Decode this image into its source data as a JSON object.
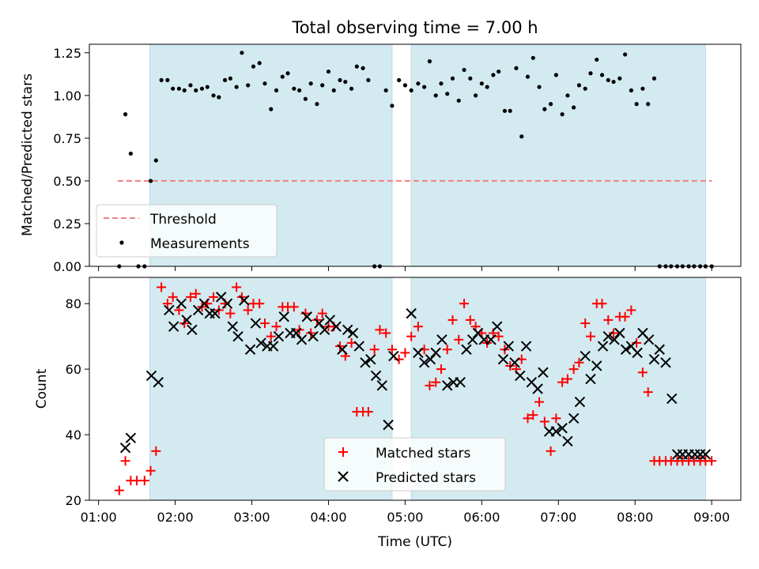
{
  "figure": {
    "title": "Total observing time = 7.00 h",
    "xlabel": "Time (UTC)",
    "x_ticks": [
      "01:00",
      "02:00",
      "03:00",
      "04:00",
      "05:00",
      "06:00",
      "07:00",
      "08:00",
      "09:00"
    ]
  },
  "colors": {
    "shade": "#d3eaf0",
    "measurement": "#000000",
    "threshold": "#f08080",
    "matched": "#ff0000",
    "predicted": "#000000"
  },
  "chart_data": [
    {
      "type": "scatter",
      "panel": "top",
      "ylabel": "Matched/Predicted stars",
      "ylim": [
        0,
        1.3
      ],
      "y_ticks": [
        "0.00",
        "0.25",
        "0.50",
        "0.75",
        "1.00",
        "1.25"
      ],
      "x_unit": "hours UTC",
      "shaded_intervals": [
        [
          1.67,
          4.83
        ],
        [
          5.08,
          8.92
        ]
      ],
      "threshold": {
        "value": 0.5,
        "x_range": [
          1.25,
          9.0
        ]
      },
      "legend": {
        "placement": "lower-left",
        "entries": [
          "Threshold",
          "Measurements"
        ]
      },
      "series": [
        {
          "name": "Measurements",
          "x": [
            1.27,
            1.35,
            1.42,
            1.52,
            1.6,
            1.68,
            1.75,
            1.82,
            1.9,
            1.97,
            2.05,
            2.12,
            2.2,
            2.27,
            2.35,
            2.42,
            2.5,
            2.57,
            2.65,
            2.72,
            2.8,
            2.87,
            2.95,
            3.02,
            3.1,
            3.17,
            3.25,
            3.32,
            3.4,
            3.47,
            3.55,
            3.62,
            3.7,
            3.77,
            3.85,
            3.92,
            4.0,
            4.07,
            4.15,
            4.22,
            4.3,
            4.37,
            4.45,
            4.52,
            4.6,
            4.67,
            4.75,
            4.83,
            4.92,
            5.0,
            5.08,
            5.17,
            5.25,
            5.32,
            5.4,
            5.47,
            5.55,
            5.62,
            5.7,
            5.77,
            5.85,
            5.92,
            6.0,
            6.07,
            6.15,
            6.22,
            6.3,
            6.37,
            6.45,
            6.52,
            6.6,
            6.67,
            6.75,
            6.82,
            6.9,
            6.97,
            7.05,
            7.12,
            7.2,
            7.27,
            7.35,
            7.42,
            7.5,
            7.57,
            7.65,
            7.72,
            7.8,
            7.87,
            7.95,
            8.02,
            8.1,
            8.17,
            8.25,
            8.32,
            8.4,
            8.47,
            8.55,
            8.62,
            8.7,
            8.77,
            8.85,
            8.92,
            9.0
          ],
          "y": [
            0.0,
            0.89,
            0.66,
            0.0,
            0.0,
            0.5,
            0.62,
            1.09,
            1.09,
            1.04,
            1.04,
            1.03,
            1.06,
            1.03,
            1.04,
            1.05,
            1.0,
            0.99,
            1.09,
            1.1,
            1.05,
            1.25,
            1.06,
            1.17,
            1.19,
            1.07,
            0.92,
            1.03,
            1.11,
            1.13,
            1.04,
            1.03,
            0.98,
            1.07,
            0.95,
            1.06,
            1.14,
            1.03,
            1.09,
            1.08,
            1.04,
            1.17,
            1.16,
            1.09,
            0.0,
            0.0,
            1.03,
            0.94,
            1.09,
            1.06,
            1.03,
            1.07,
            1.05,
            1.2,
            1.0,
            1.07,
            1.01,
            1.1,
            0.97,
            1.15,
            1.1,
            1.0,
            1.07,
            1.05,
            1.12,
            1.14,
            0.91,
            0.91,
            1.16,
            0.76,
            1.11,
            1.22,
            1.05,
            0.92,
            0.95,
            1.12,
            0.89,
            1.0,
            0.93,
            1.06,
            1.04,
            1.13,
            1.21,
            1.12,
            1.09,
            1.08,
            1.1,
            1.24,
            1.03,
            0.95,
            1.04,
            0.95,
            1.1,
            0.0,
            0.0,
            0.0,
            0.0,
            0.0,
            0.0,
            0.0,
            0.0,
            0.0,
            0.0
          ]
        }
      ]
    },
    {
      "type": "scatter",
      "panel": "bottom",
      "ylabel": "Count",
      "ylim": [
        20,
        88
      ],
      "y_ticks": [
        "20",
        "40",
        "60",
        "80"
      ],
      "x_unit": "hours UTC",
      "shaded_intervals": [
        [
          1.67,
          4.83
        ],
        [
          5.08,
          8.92
        ]
      ],
      "legend": {
        "placement": "lower-center",
        "entries": [
          "Matched stars",
          "Predicted stars"
        ]
      },
      "series": [
        {
          "name": "Matched stars",
          "marker": "plus",
          "x": [
            1.27,
            1.35,
            1.42,
            1.5,
            1.6,
            1.68,
            1.75,
            1.82,
            1.9,
            1.97,
            2.05,
            2.12,
            2.2,
            2.27,
            2.35,
            2.42,
            2.5,
            2.57,
            2.65,
            2.72,
            2.8,
            2.87,
            2.95,
            3.02,
            3.1,
            3.17,
            3.25,
            3.32,
            3.4,
            3.47,
            3.55,
            3.62,
            3.7,
            3.77,
            3.85,
            3.92,
            4.0,
            4.07,
            4.15,
            4.22,
            4.3,
            4.37,
            4.45,
            4.52,
            4.6,
            4.67,
            4.75,
            4.83,
            4.92,
            5.0,
            5.08,
            5.17,
            5.25,
            5.32,
            5.4,
            5.47,
            5.55,
            5.62,
            5.7,
            5.77,
            5.85,
            5.92,
            6.0,
            6.07,
            6.15,
            6.22,
            6.3,
            6.37,
            6.45,
            6.52,
            6.6,
            6.67,
            6.75,
            6.82,
            6.9,
            6.97,
            7.05,
            7.12,
            7.2,
            7.27,
            7.35,
            7.42,
            7.5,
            7.57,
            7.65,
            7.72,
            7.8,
            7.87,
            7.95,
            8.02,
            8.1,
            8.17,
            8.25,
            8.32,
            8.4,
            8.47,
            8.55,
            8.62,
            8.7,
            8.77,
            8.85,
            8.92,
            9.0
          ],
          "y": [
            23,
            32,
            26,
            26,
            26,
            29,
            35,
            85,
            80,
            82,
            78,
            74,
            82,
            83,
            79,
            80,
            82,
            78,
            80,
            77,
            85,
            82,
            78,
            80,
            80,
            74,
            70,
            73,
            79,
            79,
            79,
            72,
            77,
            71,
            75,
            77,
            73,
            73,
            67,
            64,
            68,
            47,
            47,
            47,
            66,
            72,
            71,
            66,
            63,
            65,
            70,
            73,
            66,
            55,
            56,
            60,
            66,
            75,
            69,
            80,
            75,
            73,
            71,
            68,
            71,
            70,
            66,
            61,
            60,
            63,
            45,
            46,
            50,
            44,
            35,
            45,
            56,
            57,
            60,
            62,
            74,
            70,
            80,
            80,
            75,
            71,
            76,
            76,
            78,
            68,
            59,
            53,
            32,
            32,
            32,
            32,
            32,
            32,
            32,
            32,
            32,
            32,
            32
          ],
          "note_x_offset": 0
        },
        {
          "name": "Predicted stars",
          "marker": "x",
          "x": [
            1.35,
            1.42,
            1.69,
            1.78,
            1.92,
            1.98,
            2.08,
            2.15,
            2.22,
            2.3,
            2.38,
            2.45,
            2.52,
            2.6,
            2.68,
            2.75,
            2.82,
            2.9,
            2.98,
            3.05,
            3.12,
            3.2,
            3.28,
            3.35,
            3.42,
            3.5,
            3.58,
            3.65,
            3.72,
            3.8,
            3.88,
            3.95,
            4.02,
            4.1,
            4.18,
            4.25,
            4.32,
            4.4,
            4.48,
            4.55,
            4.62,
            4.7,
            4.78,
            4.85,
            5.08,
            5.17,
            5.25,
            5.33,
            5.4,
            5.48,
            5.55,
            5.63,
            5.72,
            5.8,
            5.88,
            5.95,
            6.03,
            6.12,
            6.2,
            6.28,
            6.35,
            6.43,
            6.5,
            6.58,
            6.65,
            6.73,
            6.8,
            6.88,
            6.97,
            7.05,
            7.12,
            7.2,
            7.28,
            7.35,
            7.42,
            7.5,
            7.58,
            7.65,
            7.73,
            7.8,
            7.88,
            7.95,
            8.03,
            8.1,
            8.18,
            8.25,
            8.32,
            8.4,
            8.48,
            8.55,
            8.62,
            8.7,
            8.78,
            8.85,
            8.92
          ],
          "y": [
            36,
            39,
            58,
            56,
            78,
            73,
            80,
            75,
            72,
            78,
            80,
            77,
            77,
            82,
            80,
            73,
            70,
            81,
            66,
            74,
            68,
            67,
            67,
            70,
            76,
            71,
            71,
            69,
            76,
            70,
            74,
            72,
            75,
            73,
            66,
            72,
            71,
            67,
            62,
            63,
            58,
            55,
            43,
            64,
            77,
            65,
            62,
            63,
            65,
            69,
            55,
            56,
            56,
            66,
            69,
            71,
            69,
            69,
            73,
            63,
            67,
            62,
            58,
            67,
            56,
            54,
            59,
            41,
            41,
            42,
            38,
            45,
            50,
            64,
            57,
            61,
            67,
            70,
            69,
            71,
            66,
            67,
            65,
            71,
            69,
            63,
            66,
            62,
            51,
            34,
            34,
            34,
            34,
            34,
            34
          ],
          "note_x_offset": 0
        }
      ]
    }
  ]
}
